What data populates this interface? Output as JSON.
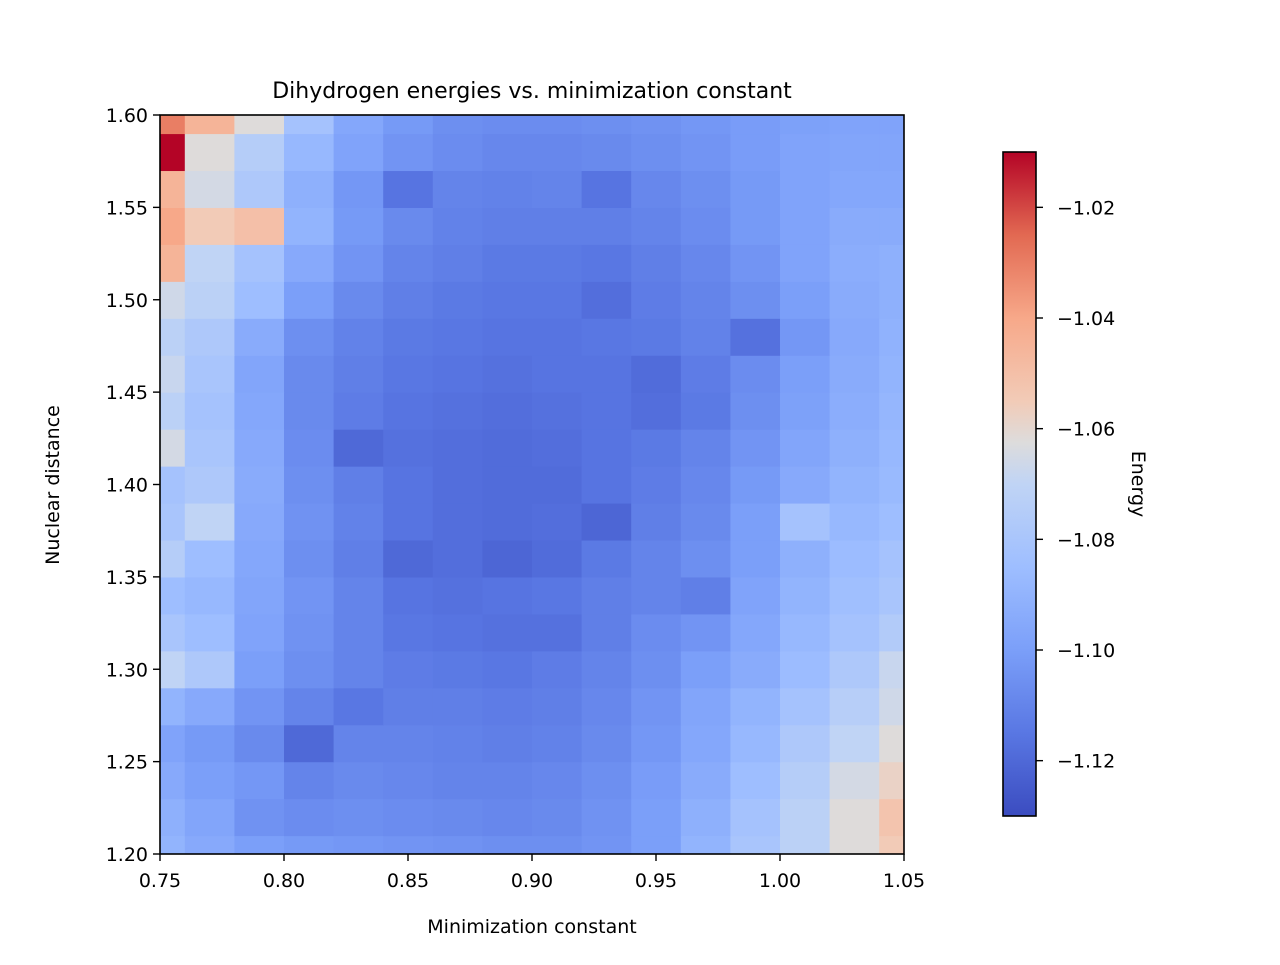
{
  "chart_data": {
    "type": "heatmap",
    "title": "Dihydrogen energies vs. minimization constant",
    "xlabel": "Minimization constant",
    "ylabel": "Nuclear distance",
    "colorbar_label": "Energy",
    "colormap": "coolwarm",
    "xlim": [
      0.75,
      1.05
    ],
    "ylim": [
      1.2,
      1.6
    ],
    "clim": [
      -1.13,
      -1.01
    ],
    "x_ticks": [
      "0.75",
      "0.80",
      "0.85",
      "0.90",
      "0.95",
      "1.00",
      "1.05"
    ],
    "y_ticks": [
      "1.20",
      "1.25",
      "1.30",
      "1.35",
      "1.40",
      "1.45",
      "1.50",
      "1.55",
      "1.60"
    ],
    "colorbar_ticks": [
      "−1.02",
      "−1.04",
      "−1.06",
      "−1.08",
      "−1.10",
      "−1.12"
    ],
    "x_values": [
      0.75,
      0.77,
      0.79,
      0.81,
      0.83,
      0.85,
      0.87,
      0.89,
      0.91,
      0.93,
      0.95,
      0.97,
      0.99,
      1.01,
      1.03,
      1.05
    ],
    "y_values": [
      1.2,
      1.22,
      1.24,
      1.26,
      1.28,
      1.3,
      1.32,
      1.34,
      1.36,
      1.38,
      1.4,
      1.42,
      1.44,
      1.46,
      1.48,
      1.5,
      1.52,
      1.54,
      1.56,
      1.58,
      1.6
    ],
    "z_values": [
      [
        -1.09,
        -1.095,
        -1.1,
        -1.102,
        -1.103,
        -1.104,
        -1.105,
        -1.106,
        -1.106,
        -1.104,
        -1.1,
        -1.09,
        -1.08,
        -1.072,
        -1.062,
        -1.055
      ],
      [
        -1.092,
        -1.097,
        -1.105,
        -1.107,
        -1.106,
        -1.107,
        -1.108,
        -1.109,
        -1.108,
        -1.105,
        -1.1,
        -1.092,
        -1.082,
        -1.072,
        -1.062,
        -1.052
      ],
      [
        -1.095,
        -1.1,
        -1.103,
        -1.11,
        -1.108,
        -1.109,
        -1.11,
        -1.11,
        -1.109,
        -1.106,
        -1.101,
        -1.094,
        -1.085,
        -1.075,
        -1.065,
        -1.058
      ],
      [
        -1.098,
        -1.102,
        -1.108,
        -1.12,
        -1.11,
        -1.11,
        -1.111,
        -1.112,
        -1.111,
        -1.108,
        -1.103,
        -1.096,
        -1.088,
        -1.078,
        -1.07,
        -1.062
      ],
      [
        -1.09,
        -1.095,
        -1.104,
        -1.11,
        -1.115,
        -1.112,
        -1.112,
        -1.113,
        -1.112,
        -1.109,
        -1.104,
        -1.097,
        -1.09,
        -1.082,
        -1.074,
        -1.066
      ],
      [
        -1.07,
        -1.078,
        -1.1,
        -1.106,
        -1.11,
        -1.113,
        -1.114,
        -1.115,
        -1.113,
        -1.11,
        -1.106,
        -1.1,
        -1.094,
        -1.086,
        -1.078,
        -1.068
      ],
      [
        -1.08,
        -1.085,
        -1.098,
        -1.105,
        -1.11,
        -1.115,
        -1.116,
        -1.117,
        -1.117,
        -1.112,
        -1.107,
        -1.104,
        -1.096,
        -1.088,
        -1.082,
        -1.076
      ],
      [
        -1.085,
        -1.088,
        -1.097,
        -1.104,
        -1.11,
        -1.116,
        -1.117,
        -1.116,
        -1.115,
        -1.112,
        -1.11,
        -1.112,
        -1.098,
        -1.09,
        -1.084,
        -1.08
      ],
      [
        -1.075,
        -1.085,
        -1.096,
        -1.106,
        -1.112,
        -1.12,
        -1.118,
        -1.121,
        -1.119,
        -1.114,
        -1.11,
        -1.106,
        -1.1,
        -1.092,
        -1.086,
        -1.082
      ],
      [
        -1.08,
        -1.07,
        -1.095,
        -1.105,
        -1.111,
        -1.116,
        -1.118,
        -1.119,
        -1.118,
        -1.121,
        -1.112,
        -1.108,
        -1.1,
        -1.082,
        -1.088,
        -1.085
      ],
      [
        -1.082,
        -1.078,
        -1.094,
        -1.106,
        -1.112,
        -1.116,
        -1.118,
        -1.119,
        -1.119,
        -1.116,
        -1.113,
        -1.109,
        -1.102,
        -1.095,
        -1.09,
        -1.087
      ],
      [
        -1.065,
        -1.08,
        -1.095,
        -1.107,
        -1.12,
        -1.117,
        -1.118,
        -1.119,
        -1.118,
        -1.116,
        -1.114,
        -1.11,
        -1.104,
        -1.097,
        -1.092,
        -1.088
      ],
      [
        -1.072,
        -1.082,
        -1.096,
        -1.108,
        -1.113,
        -1.116,
        -1.117,
        -1.118,
        -1.117,
        -1.116,
        -1.118,
        -1.114,
        -1.106,
        -1.099,
        -1.093,
        -1.089
      ],
      [
        -1.068,
        -1.08,
        -1.097,
        -1.108,
        -1.112,
        -1.115,
        -1.116,
        -1.117,
        -1.116,
        -1.116,
        -1.119,
        -1.113,
        -1.107,
        -1.1,
        -1.094,
        -1.09
      ],
      [
        -1.072,
        -1.078,
        -1.094,
        -1.106,
        -1.111,
        -1.114,
        -1.115,
        -1.116,
        -1.116,
        -1.115,
        -1.114,
        -1.111,
        -1.117,
        -1.103,
        -1.095,
        -1.091
      ],
      [
        -1.066,
        -1.072,
        -1.085,
        -1.1,
        -1.108,
        -1.112,
        -1.114,
        -1.115,
        -1.115,
        -1.118,
        -1.113,
        -1.11,
        -1.106,
        -1.1,
        -1.094,
        -1.092
      ],
      [
        -1.045,
        -1.07,
        -1.082,
        -1.095,
        -1.104,
        -1.11,
        -1.112,
        -1.114,
        -1.114,
        -1.115,
        -1.112,
        -1.109,
        -1.104,
        -1.098,
        -1.093,
        -1.092
      ],
      [
        -1.04,
        -1.055,
        -1.05,
        -1.09,
        -1.102,
        -1.108,
        -1.111,
        -1.112,
        -1.112,
        -1.112,
        -1.11,
        -1.107,
        -1.102,
        -1.098,
        -1.094,
        -1.094
      ],
      [
        -1.045,
        -1.065,
        -1.078,
        -1.092,
        -1.103,
        -1.116,
        -1.11,
        -1.111,
        -1.11,
        -1.116,
        -1.109,
        -1.106,
        -1.102,
        -1.098,
        -1.096,
        -1.096
      ],
      [
        -1.01,
        -1.062,
        -1.075,
        -1.088,
        -1.098,
        -1.104,
        -1.107,
        -1.109,
        -1.109,
        -1.108,
        -1.106,
        -1.104,
        -1.101,
        -1.098,
        -1.097,
        -1.097
      ],
      [
        -1.03,
        -1.045,
        -1.062,
        -1.082,
        -1.096,
        -1.102,
        -1.106,
        -1.107,
        -1.107,
        -1.106,
        -1.105,
        -1.103,
        -1.101,
        -1.099,
        -1.098,
        -1.098
      ]
    ]
  }
}
